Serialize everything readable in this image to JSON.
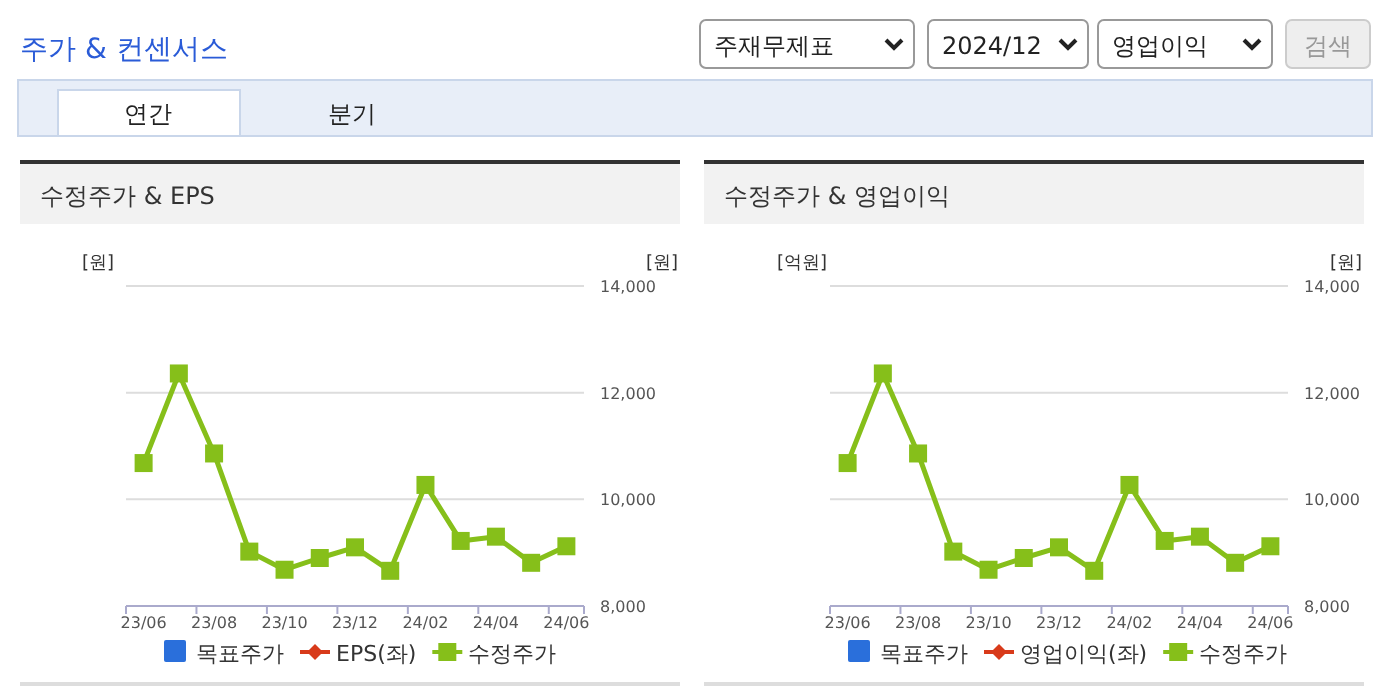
{
  "chart_data": [
    {
      "type": "other",
      "title": "주가 & 컨센서스",
      "annotations": [
        "주재무제표",
        "2024/12",
        "영업이익",
        "검색",
        "연간",
        "분기"
      ]
    },
    {
      "type": "line",
      "title": "수정주가 & EPS",
      "ylabel": "[원]",
      "y2label": "[원]",
      "categories": [
        "23/06",
        null,
        "23/08",
        null,
        "23/10",
        null,
        "23/12",
        null,
        "24/02",
        null,
        "24/04",
        null,
        "24/06"
      ],
      "y2lim": [
        8000,
        14000
      ],
      "y2ticks": [
        {
          "value": 8000,
          "label": "8,000"
        },
        {
          "value": 10000,
          "label": "10,000"
        },
        {
          "value": 12000,
          "label": "12,000"
        },
        {
          "value": 14000,
          "label": "14,000"
        }
      ],
      "grid": "y",
      "legend": "bottom",
      "series": [
        {
          "name": "목표주가",
          "color": "#2a6fdb",
          "type": "bar",
          "values": [
            null,
            null,
            null,
            null,
            null,
            null,
            null,
            null,
            null,
            null,
            null,
            null,
            null
          ]
        },
        {
          "name": "EPS(좌)",
          "color": "#d83a1a",
          "marker": "diamond",
          "values": [
            null,
            null,
            null,
            null,
            null,
            null,
            null,
            null,
            null,
            null,
            null,
            null,
            null
          ]
        },
        {
          "name": "수정주가",
          "color": "#86bf1a",
          "marker": "square",
          "axis": "y2",
          "values": [
            10680,
            12360,
            10860,
            9020,
            8680,
            8900,
            9100,
            8660,
            10270,
            9220,
            9300,
            8810,
            9120
          ]
        }
      ]
    },
    {
      "type": "line",
      "title": "수정주가 & 영업이익",
      "ylabel": "[억원]",
      "y2label": "[원]",
      "categories": [
        "23/06",
        null,
        "23/08",
        null,
        "23/10",
        null,
        "23/12",
        null,
        "24/02",
        null,
        "24/04",
        null,
        "24/06"
      ],
      "y2lim": [
        8000,
        14000
      ],
      "y2ticks": [
        {
          "value": 8000,
          "label": "8,000"
        },
        {
          "value": 10000,
          "label": "10,000"
        },
        {
          "value": 12000,
          "label": "12,000"
        },
        {
          "value": 14000,
          "label": "14,000"
        }
      ],
      "grid": "y",
      "legend": "bottom",
      "series": [
        {
          "name": "목표주가",
          "color": "#2a6fdb",
          "type": "bar",
          "values": [
            null,
            null,
            null,
            null,
            null,
            null,
            null,
            null,
            null,
            null,
            null,
            null,
            null
          ]
        },
        {
          "name": "영업이익(좌)",
          "color": "#d83a1a",
          "marker": "diamond",
          "values": [
            null,
            null,
            null,
            null,
            null,
            null,
            null,
            null,
            null,
            null,
            null,
            null,
            null
          ]
        },
        {
          "name": "수정주가",
          "color": "#86bf1a",
          "marker": "square",
          "axis": "y2",
          "values": [
            10680,
            12360,
            10860,
            9020,
            8680,
            8900,
            9100,
            8660,
            10270,
            9220,
            9300,
            8810,
            9120
          ]
        }
      ]
    }
  ]
}
